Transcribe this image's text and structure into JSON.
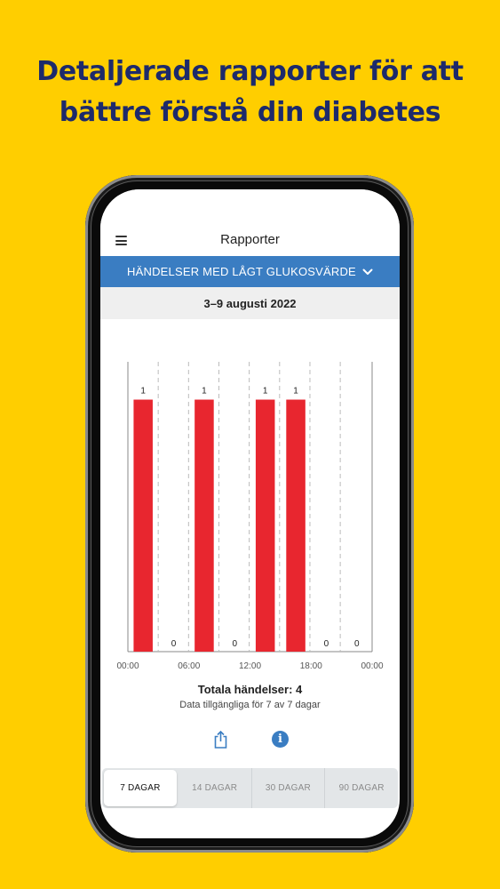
{
  "headline": {
    "line1": "Detaljerade rapporter för att",
    "line2": "bättre förstå din diabetes"
  },
  "app": {
    "title": "Rapporter",
    "menu_icon": "hamburger-menu-icon"
  },
  "report_selector": {
    "label": "HÄNDELSER MED LÅGT GLUKOSVÄRDE",
    "icon": "chevron-down-icon"
  },
  "date_range": "3–9 augusti 2022",
  "chart_data": {
    "type": "bar",
    "categories": [
      "00:00–03:00",
      "03:00–06:00",
      "06:00–09:00",
      "09:00–12:00",
      "12:00–15:00",
      "15:00–18:00",
      "18:00–21:00",
      "21:00–00:00"
    ],
    "values": [
      1,
      0,
      1,
      0,
      1,
      1,
      0,
      0
    ],
    "value_labels": [
      "1",
      "0",
      "1",
      "0",
      "1",
      "1",
      "0",
      "0"
    ],
    "x_tick_labels": [
      "00:00",
      "06:00",
      "12:00",
      "18:00",
      "00:00"
    ],
    "ylim": [
      0,
      1.15
    ],
    "bar_color": "#E8262F",
    "title": "",
    "xlabel": "",
    "ylabel": "",
    "grid": "dashed vertical separators"
  },
  "summary": {
    "total": "Totala händelser: 4",
    "availability": "Data tillgängliga för 7 av 7 dagar"
  },
  "actions": {
    "share_icon": "share-icon",
    "info_icon": "info-icon",
    "info_glyph": "i"
  },
  "tabs": [
    {
      "label": "7 DAGAR",
      "active": true
    },
    {
      "label": "14 DAGAR",
      "active": false
    },
    {
      "label": "30 DAGAR",
      "active": false
    },
    {
      "label": "90 DAGAR",
      "active": false
    }
  ],
  "colors": {
    "background": "#FFCE00",
    "headline": "#1D2A6B",
    "accent": "#3A7DC2",
    "bar": "#E8262F"
  }
}
